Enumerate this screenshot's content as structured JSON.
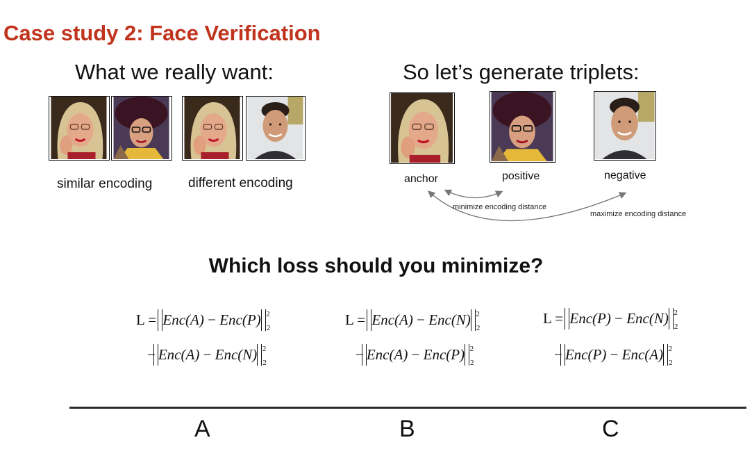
{
  "title": "Case study 2: Face Verification",
  "left": {
    "heading": "What we really want:",
    "similar_label": "similar encoding",
    "different_label": "different encoding"
  },
  "right": {
    "heading": "So let’s generate triplets:",
    "anchor_label": "anchor",
    "positive_label": "positive",
    "negative_label": "negative",
    "minimize_label": "minimize encoding distance",
    "maximize_label": "maximize encoding distance"
  },
  "question": "Which loss should you minimize?",
  "formulas": [
    {
      "line1": "L = ||Enc(A) − Enc(P)||²₂",
      "line2": "−||Enc(A) − Enc(N)||²₂"
    },
    {
      "line1": "L = ||Enc(A) − Enc(N)||²₂",
      "line2": "−||Enc(A) − Enc(P)||²₂"
    },
    {
      "line1": "L = ||Enc(P) − Enc(N)||²₂",
      "line2": "−||Enc(P) − Enc(A)||²₂"
    }
  ],
  "choices": [
    "A",
    "B",
    "C"
  ],
  "colors": {
    "title": "#c0341d",
    "divider": "#2b2b2b"
  }
}
